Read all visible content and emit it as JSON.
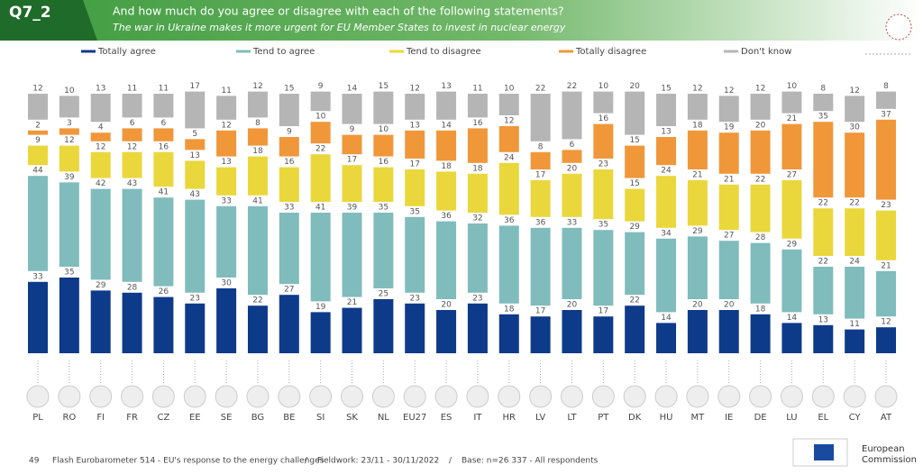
{
  "header": {
    "question": "Q7_2",
    "title": "And how much do you agree or disagree with each of the following statements?",
    "subtitle": "The war in Ukraine makes it more urgent for EU Member States to invest in nuclear energy"
  },
  "chart_data": {
    "type": "stacked_bar",
    "categories": [
      "PL",
      "RO",
      "FI",
      "FR",
      "CZ",
      "EE",
      "SE",
      "BG",
      "BE",
      "SI",
      "SK",
      "NL",
      "EU27",
      "ES",
      "IT",
      "HR",
      "LV",
      "LT",
      "PT",
      "DK",
      "HU",
      "MT",
      "IE",
      "DE",
      "LU",
      "EL",
      "CY",
      "AT"
    ],
    "series": [
      {
        "name": "Totally agree",
        "color": "#0e3a8a",
        "values": [
          33,
          35,
          29,
          28,
          26,
          23,
          30,
          22,
          27,
          19,
          21,
          25,
          23,
          20,
          23,
          18,
          17,
          20,
          17,
          22,
          14,
          20,
          20,
          18,
          14,
          13,
          11,
          12
        ]
      },
      {
        "name": "Tend to agree",
        "color": "#80bcbc",
        "values": [
          44,
          39,
          42,
          43,
          41,
          43,
          33,
          41,
          33,
          41,
          39,
          35,
          35,
          36,
          32,
          36,
          36,
          33,
          35,
          29,
          34,
          29,
          27,
          28,
          29,
          22,
          24,
          21
        ]
      },
      {
        "name": "Tend to disagree",
        "color": "#ead73c",
        "values": [
          9,
          12,
          12,
          12,
          16,
          13,
          13,
          18,
          16,
          22,
          17,
          16,
          17,
          18,
          18,
          24,
          17,
          20,
          23,
          15,
          24,
          21,
          21,
          22,
          27,
          22,
          22,
          23
        ]
      },
      {
        "name": "Totally disagree",
        "color": "#f0973a",
        "values": [
          2,
          3,
          4,
          6,
          6,
          5,
          12,
          8,
          9,
          10,
          9,
          10,
          13,
          14,
          16,
          12,
          8,
          6,
          16,
          15,
          13,
          18,
          19,
          20,
          21,
          35,
          30,
          37
        ]
      },
      {
        "name": "Don't know",
        "color": "#b5b5b5",
        "values": [
          12,
          10,
          13,
          11,
          11,
          17,
          11,
          12,
          15,
          9,
          14,
          15,
          12,
          13,
          11,
          10,
          22,
          22,
          10,
          20,
          15,
          12,
          12,
          12,
          10,
          8,
          12,
          8
        ]
      }
    ]
  },
  "footer": {
    "page": "49",
    "source": "Flash Eurobarometer 514 - EU's response to the energy challenges",
    "sep1": "/",
    "fieldwork": "Fieldwork: 23/11 - 30/11/2022",
    "sep2": "/",
    "base": "Base: n=26 337 - All respondents",
    "logo_line1": "European",
    "logo_line2": "Commission"
  }
}
